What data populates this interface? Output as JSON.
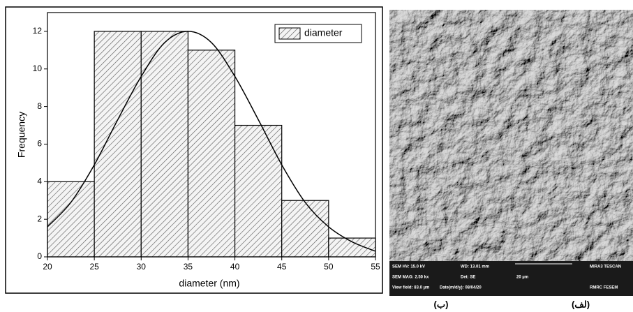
{
  "chart_data": {
    "type": "histogram",
    "xlabel": "diameter (nm)",
    "ylabel": "Frequency",
    "bins": [
      20,
      25,
      30,
      35,
      40,
      45,
      50,
      55
    ],
    "series": [
      {
        "name": "diameter",
        "color": "#555555",
        "values": [
          4,
          12,
          12,
          11,
          7,
          3,
          1
        ]
      }
    ],
    "fit": {
      "color": "#000000",
      "x": [
        20,
        22.5,
        25,
        27.5,
        30,
        32.5,
        35,
        37.5,
        40,
        42.5,
        45,
        47.5,
        50,
        52.5,
        55
      ],
      "values": [
        1.6,
        2.9,
        4.9,
        7.3,
        9.6,
        11.4,
        12,
        11.4,
        9.6,
        7.3,
        4.9,
        2.9,
        1.6,
        0.8,
        0.3
      ]
    },
    "xlim": [
      20,
      55
    ],
    "xticks": [
      20,
      25,
      30,
      35,
      40,
      45,
      50,
      55
    ],
    "ylim": [
      0,
      13
    ],
    "yticks": [
      0,
      2,
      4,
      6,
      8,
      10,
      12
    ],
    "legend": "upper right"
  },
  "image": {
    "info_bar": [
      "SEM HV: 15.0 kV",
      "WD: 13.01 mm",
      "MIRA3 TESCAN",
      "SEM MAG: 2.50 kx",
      "Det: SE",
      "20 µm",
      "View field: 83.0 µm",
      "Date(m/d/y): 08/04/20",
      "RMRC FESEM"
    ]
  },
  "captions": [
    "(ب)",
    "(لف)"
  ]
}
